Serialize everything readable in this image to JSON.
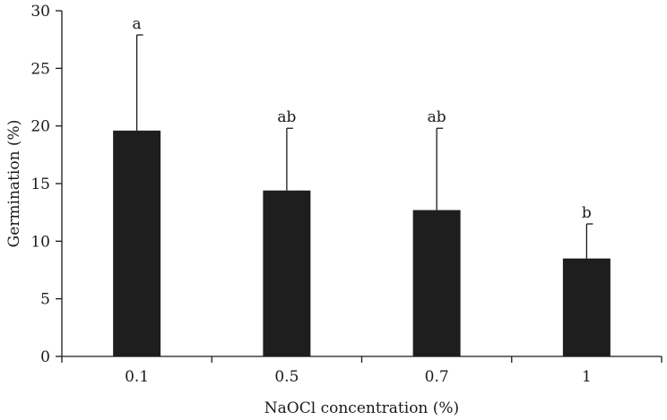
{
  "chart_data": {
    "type": "bar",
    "title": "",
    "xlabel": "NaOCl concentration (%)",
    "ylabel": "Germination (%)",
    "categories": [
      "0.1",
      "0.5",
      "0.7",
      "1"
    ],
    "values": [
      19.6,
      14.4,
      12.7,
      8.5
    ],
    "error_upper": [
      27.9,
      19.8,
      19.8,
      11.5
    ],
    "significance_letters": [
      "a",
      "ab",
      "ab",
      "b"
    ],
    "ylim": [
      0,
      30
    ],
    "yticks": [
      0,
      5,
      10,
      15,
      20,
      25,
      30
    ],
    "grid": false,
    "bar_color": "#1e1e1e"
  }
}
